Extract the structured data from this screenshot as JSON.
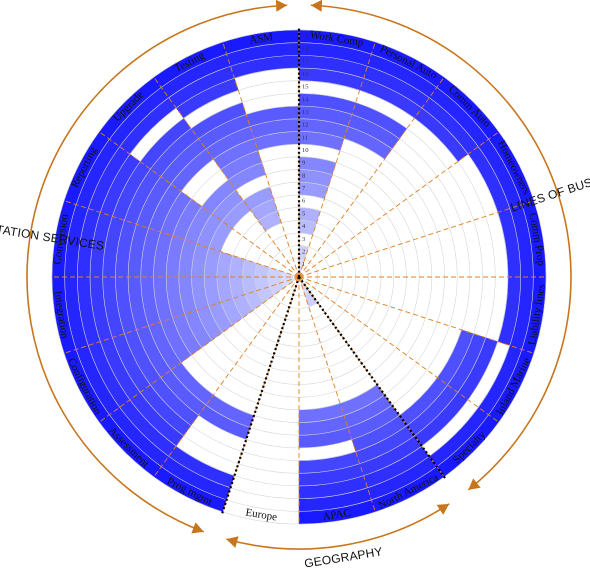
{
  "chart_data": {
    "type": "polar-segment-rings",
    "rings": 19,
    "ring_labels": [
      "1",
      "2",
      "3",
      "4",
      "5",
      "6",
      "7",
      "8",
      "9",
      "10",
      "11",
      "12",
      "13",
      "14",
      "15",
      "16",
      "17",
      "18",
      "19"
    ],
    "grid": true,
    "categories": [
      {
        "name": "Work Comp",
        "group": "lines_of_business",
        "segments": [
          [
            1,
            2
          ],
          [
            4,
            5
          ],
          [
            7,
            9
          ],
          [
            11,
            14
          ],
          [
            16,
            19
          ]
        ]
      },
      {
        "name": "Personal Auto",
        "group": "lines_of_business",
        "segments": [
          [
            12,
            14
          ],
          [
            16,
            19
          ]
        ]
      },
      {
        "name": "Comm Auto",
        "group": "lines_of_business",
        "segments": [
          [
            16,
            19
          ]
        ]
      },
      {
        "name": "Homeowners",
        "group": "lines_of_business",
        "segments": [
          [
            17,
            19
          ]
        ]
      },
      {
        "name": "Comm Prop",
        "group": "lines_of_business",
        "segments": [
          [
            17,
            19
          ]
        ]
      },
      {
        "name": "Liability lines",
        "group": "lines_of_business",
        "segments": [
          [
            17,
            19
          ]
        ]
      },
      {
        "name": "Inland Marine",
        "group": "lines_of_business",
        "segments": [
          [
            14,
            16
          ],
          [
            18,
            19
          ]
        ]
      },
      {
        "name": "Specialty",
        "group": "lines_of_business",
        "segments": [
          [
            14,
            16
          ],
          [
            18,
            19
          ]
        ]
      },
      {
        "name": "North America",
        "group": "geography",
        "segments": [
          [
            1,
            2
          ],
          [
            11,
            19
          ]
        ]
      },
      {
        "name": "APAC",
        "group": "geography",
        "segments": [
          [
            11,
            13
          ],
          [
            15,
            19
          ]
        ]
      },
      {
        "name": "Europe",
        "group": "geography",
        "segments": []
      },
      {
        "name": "Prog mgmt",
        "group": "implementation_services",
        "segments": [
          [
            12,
            13
          ],
          [
            17,
            19
          ]
        ]
      },
      {
        "name": "Assessment",
        "group": "implementation_services",
        "segments": [
          [
            12,
            19
          ]
        ]
      },
      {
        "name": "Configuration",
        "group": "implementation_services",
        "segments": [
          [
            1,
            19
          ]
        ]
      },
      {
        "name": "Integration",
        "group": "implementation_services",
        "segments": [
          [
            1,
            19
          ]
        ]
      },
      {
        "name": "Conversion",
        "group": "implementation_services",
        "segments": [
          [
            1,
            19
          ]
        ]
      },
      {
        "name": "Reporting",
        "group": "implementation_services",
        "segments": [
          [
            7,
            19
          ]
        ]
      },
      {
        "name": "Upgrade",
        "group": "implementation_services",
        "segments": [
          [
            7,
            9
          ],
          [
            12,
            15
          ],
          [
            17,
            19
          ]
        ]
      },
      {
        "name": "Testing",
        "group": "implementation_services",
        "segments": [
          [
            5,
            7
          ],
          [
            9,
            14
          ],
          [
            16,
            19
          ]
        ]
      },
      {
        "name": "ASM",
        "group": "implementation_services",
        "segments": [
          [
            11,
            13
          ],
          [
            17,
            19
          ]
        ]
      }
    ],
    "groups": [
      {
        "id": "lines_of_business",
        "label": "LINES OF BUSINESS"
      },
      {
        "id": "geography",
        "label": "GEOGRAPHY"
      },
      {
        "id": "implementation_services",
        "label": "IMPLEMENTATION SERVICES"
      }
    ],
    "colors": {
      "inner_fill": "#d9dcff",
      "outer_fill": "#1a1aff",
      "grid_line": "#d6d6d6",
      "spoke_line": "#e08020",
      "group_arc": "#c8761e",
      "divider": "#000000"
    }
  }
}
